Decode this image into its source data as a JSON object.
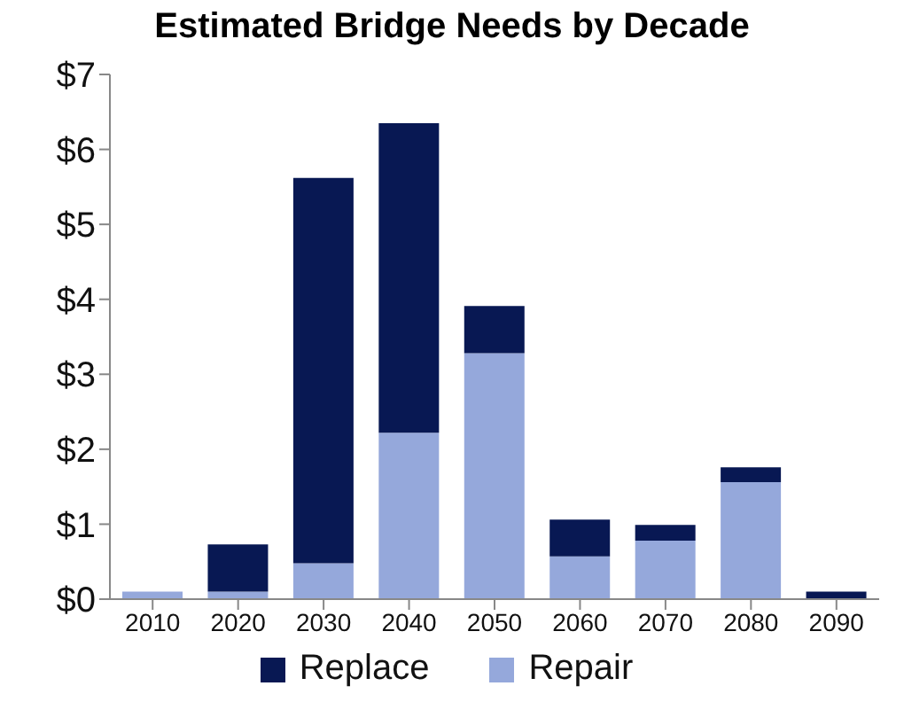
{
  "chart_data": {
    "type": "bar",
    "title": "Estimated Bridge Needs by Decade",
    "categories": [
      "2010",
      "2020",
      "2030",
      "2040",
      "2050",
      "2060",
      "2070",
      "2080",
      "2090"
    ],
    "stacked": true,
    "series": [
      {
        "name": "Repair",
        "color": "#95a8db",
        "values": [
          0.1,
          0.1,
          0.48,
          2.22,
          3.28,
          0.57,
          0.78,
          1.56,
          0
        ]
      },
      {
        "name": "Replace",
        "color": "#081853",
        "values": [
          0,
          0.63,
          5.14,
          4.13,
          0.63,
          0.49,
          0.21,
          0.2,
          0.1
        ]
      }
    ],
    "ylim": [
      0,
      7
    ],
    "yticks": [
      {
        "value": 0,
        "label": "$0"
      },
      {
        "value": 1,
        "label": "$1"
      },
      {
        "value": 2,
        "label": "$2"
      },
      {
        "value": 3,
        "label": "$3"
      },
      {
        "value": 4,
        "label": "$4"
      },
      {
        "value": 5,
        "label": "$5"
      },
      {
        "value": 6,
        "label": "$6"
      },
      {
        "value": 7,
        "label": "$7"
      }
    ],
    "grid": false,
    "legend": "bottom"
  }
}
